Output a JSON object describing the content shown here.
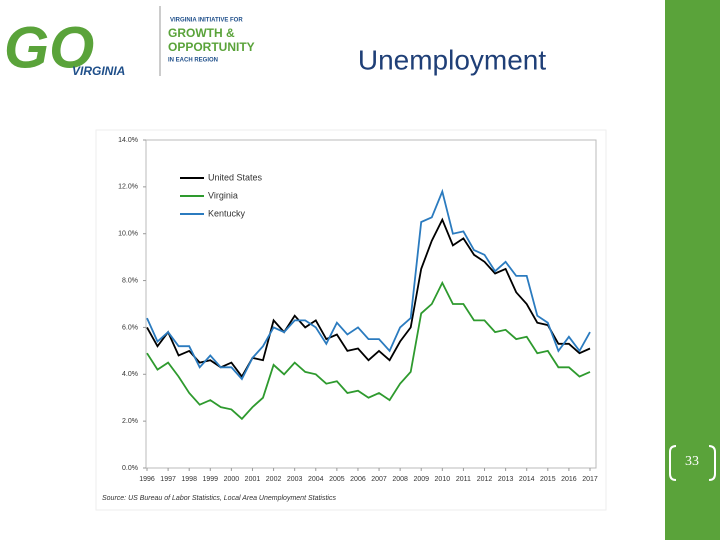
{
  "slide": {
    "title": "Unemployment",
    "page_number": "33",
    "logo": {
      "mark": "GO",
      "state": "VIRGINIA",
      "line1": "VIRGINIA INITIATIVE FOR",
      "line2": "GROWTH &",
      "line3": "OPPORTUNITY",
      "line4": "IN EACH REGION"
    }
  },
  "chart_data": {
    "type": "line",
    "source": "Source: US Bureau of Labor Statistics, Local Area Unemployment Statistics",
    "x": [
      1996,
      1996.5,
      1997,
      1997.5,
      1998,
      1998.5,
      1999,
      1999.5,
      2000,
      2000.5,
      2001,
      2001.5,
      2002,
      2002.5,
      2003,
      2003.5,
      2004,
      2004.5,
      2005,
      2005.5,
      2006,
      2006.5,
      2007,
      2007.5,
      2008,
      2008.5,
      2009,
      2009.5,
      2010,
      2010.5,
      2011,
      2011.5,
      2012,
      2012.5,
      2013,
      2013.5,
      2014,
      2014.5,
      2015,
      2015.5,
      2016,
      2016.5,
      2017
    ],
    "xlim": [
      1996,
      2017
    ],
    "xticks": [
      1996,
      1997,
      1998,
      1999,
      2000,
      2001,
      2002,
      2003,
      2004,
      2005,
      2006,
      2007,
      2008,
      2009,
      2010,
      2011,
      2012,
      2013,
      2014,
      2015,
      2016,
      2017
    ],
    "ylim": [
      0,
      14
    ],
    "yticks": [
      {
        "value": 0,
        "label": "0.0%"
      },
      {
        "value": 2,
        "label": "2.0%"
      },
      {
        "value": 4,
        "label": "4.0%"
      },
      {
        "value": 6,
        "label": "6.0%"
      },
      {
        "value": 8,
        "label": "8.0%"
      },
      {
        "value": 10,
        "label": "10.0%"
      },
      {
        "value": 12,
        "label": "12.0%"
      },
      {
        "value": 14,
        "label": "14.0%"
      }
    ],
    "legend": "top-left",
    "series": [
      {
        "name": "United States",
        "color": "#000000",
        "values": [
          6.0,
          5.2,
          5.8,
          4.8,
          5.0,
          4.5,
          4.6,
          4.3,
          4.5,
          3.9,
          4.7,
          4.6,
          6.3,
          5.8,
          6.5,
          6.0,
          6.3,
          5.5,
          5.7,
          5.0,
          5.1,
          4.6,
          5.0,
          4.6,
          5.4,
          6.0,
          8.5,
          9.7,
          10.6,
          9.5,
          9.8,
          9.1,
          8.8,
          8.3,
          8.5,
          7.5,
          7.0,
          6.2,
          6.1,
          5.3,
          5.3,
          4.9,
          5.1
        ]
      },
      {
        "name": "Virginia",
        "color": "#2e9a2e",
        "values": [
          4.9,
          4.2,
          4.5,
          3.9,
          3.2,
          2.7,
          2.9,
          2.6,
          2.5,
          2.1,
          2.6,
          3.0,
          4.4,
          4.0,
          4.5,
          4.1,
          4.0,
          3.6,
          3.7,
          3.2,
          3.3,
          3.0,
          3.2,
          2.9,
          3.6,
          4.1,
          6.6,
          7.0,
          7.9,
          7.0,
          7.0,
          6.3,
          6.3,
          5.8,
          5.9,
          5.5,
          5.6,
          4.9,
          5.0,
          4.3,
          4.3,
          3.9,
          4.1
        ]
      },
      {
        "name": "Kentucky",
        "color": "#2b7bbf",
        "values": [
          6.4,
          5.4,
          5.8,
          5.2,
          5.2,
          4.3,
          4.8,
          4.3,
          4.3,
          3.8,
          4.7,
          5.2,
          6.0,
          5.8,
          6.3,
          6.3,
          6.0,
          5.3,
          6.2,
          5.7,
          6.0,
          5.5,
          5.5,
          5.0,
          6.0,
          6.4,
          10.5,
          10.7,
          11.8,
          10.0,
          10.1,
          9.3,
          9.1,
          8.4,
          8.8,
          8.2,
          8.2,
          6.5,
          6.2,
          5.0,
          5.6,
          5.0,
          5.8
        ]
      }
    ]
  }
}
